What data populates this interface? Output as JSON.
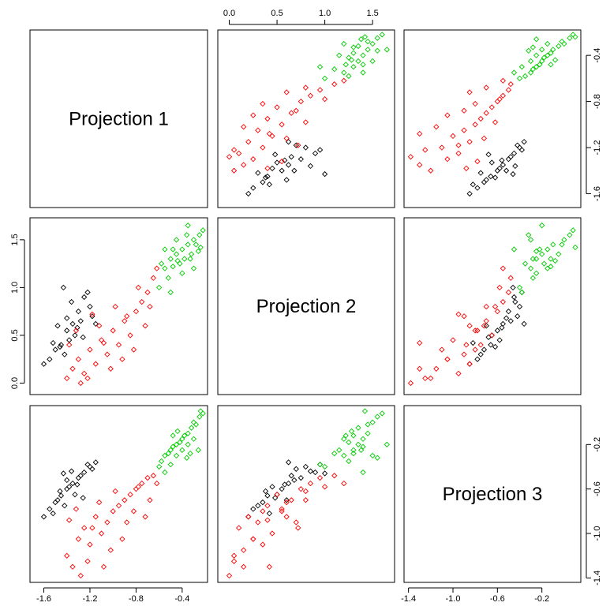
{
  "chart_data": {
    "type": "scatter-matrix",
    "variables": [
      {
        "name": "Projection 1",
        "lim": [
          -1.72,
          -0.18
        ],
        "ticks": [
          -1.6,
          -1.2,
          -0.8,
          -0.4
        ]
      },
      {
        "name": "Projection 2",
        "lim": [
          -0.12,
          1.73
        ],
        "ticks": [
          {
            "value": 0,
            "label": "0.0"
          },
          0.5,
          {
            "value": 1,
            "label": "1.0"
          },
          1.5
        ]
      },
      {
        "name": "Projection 3",
        "lim": [
          -1.44,
          0.15
        ],
        "ticks": [
          -1.4,
          {
            "value": -1,
            "label": "-1.0"
          },
          -0.6,
          -0.2
        ]
      }
    ],
    "series": [
      {
        "color": "#000000",
        "values": [
          [
            -1.55,
            -1.5,
            -1.45,
            -1.4,
            -1.35,
            -1.3,
            -1.25,
            -1.2,
            -1.52,
            -1.48,
            -1.42,
            -1.38,
            -1.33,
            -1.28,
            -1.22,
            -1.18,
            -1.6,
            -1.46,
            -1.4,
            -1.36,
            -1.31,
            -1.26,
            -1.43,
            -1.15
          ],
          [
            0.25,
            0.35,
            0.4,
            0.55,
            0.62,
            0.75,
            0.9,
            0.8,
            0.42,
            0.6,
            0.3,
            0.45,
            0.5,
            0.65,
            0.95,
            0.7,
            0.2,
            0.38,
            0.68,
            0.85,
            0.58,
            0.48,
            1.0,
            0.62
          ],
          [
            -0.78,
            -0.72,
            -0.66,
            -0.6,
            -0.55,
            -0.5,
            -0.45,
            -0.4,
            -0.82,
            -0.7,
            -0.75,
            -0.58,
            -0.65,
            -0.48,
            -0.38,
            -0.42,
            -0.85,
            -0.62,
            -0.52,
            -0.44,
            -0.56,
            -0.68,
            -0.46,
            -0.36
          ]
        ]
      },
      {
        "color": "#ff0000",
        "values": [
          [
            -1.4,
            -1.35,
            -1.3,
            -1.25,
            -1.2,
            -1.15,
            -1.1,
            -1.05,
            -1.0,
            -0.95,
            -0.9,
            -0.85,
            -0.8,
            -0.75,
            -0.7,
            -0.65,
            -1.38,
            -1.32,
            -1.22,
            -1.12,
            -1.02,
            -0.98,
            -0.92,
            -0.88,
            -0.82,
            -0.78,
            -0.72,
            -0.68,
            -1.28,
            -1.08,
            -0.62,
            -1.18
          ],
          [
            0.05,
            0.15,
            0.25,
            0.1,
            0.35,
            0.2,
            0.45,
            0.3,
            0.55,
            0.4,
            0.65,
            0.5,
            0.75,
            0.85,
            0.95,
            1.1,
            0.4,
            0.55,
            0.05,
            0.6,
            0.15,
            0.8,
            0.25,
            0.7,
            0.35,
            1.0,
            0.6,
            0.8,
            0.0,
            0.42,
            1.2,
            0.72
          ],
          [
            -1.2,
            -1.3,
            -1.05,
            -0.95,
            -1.1,
            -0.85,
            -1.0,
            -0.9,
            -0.8,
            -0.75,
            -0.7,
            -0.65,
            -0.6,
            -0.55,
            -0.5,
            -0.48,
            -0.88,
            -0.78,
            -1.25,
            -0.72,
            -1.15,
            -0.62,
            -1.05,
            -0.9,
            -0.8,
            -0.58,
            -0.85,
            -0.7,
            -1.38,
            -1.3,
            -0.55,
            -0.95
          ]
        ]
      },
      {
        "color": "#00cd00",
        "values": [
          [
            -0.6,
            -0.55,
            -0.5,
            -0.45,
            -0.4,
            -0.35,
            -0.3,
            -0.25,
            -0.58,
            -0.52,
            -0.48,
            -0.42,
            -0.38,
            -0.32,
            -0.28,
            -0.22,
            -0.55,
            -0.5,
            -0.45,
            -0.4,
            -0.35,
            -0.3,
            -0.26,
            -0.44,
            -0.36,
            -0.48,
            -0.33,
            -0.24
          ],
          [
            1.0,
            1.2,
            1.3,
            1.35,
            1.4,
            1.45,
            1.5,
            1.55,
            1.25,
            1.1,
            1.4,
            1.25,
            1.3,
            1.35,
            1.45,
            1.6,
            1.4,
            0.95,
            1.5,
            1.15,
            1.65,
            1.2,
            1.38,
            1.28,
            1.55,
            1.22,
            1.3,
            1.42
          ],
          [
            -0.4,
            -0.3,
            -0.25,
            -0.2,
            -0.15,
            -0.1,
            0.0,
            0.05,
            -0.35,
            -0.28,
            -0.22,
            -0.18,
            -0.12,
            -0.05,
            -0.02,
            0.08,
            -0.45,
            -0.38,
            -0.3,
            -0.25,
            -0.2,
            -0.15,
            -0.25,
            -0.08,
            -0.32,
            -0.12,
            -0.28,
            0.1
          ]
        ]
      }
    ]
  }
}
